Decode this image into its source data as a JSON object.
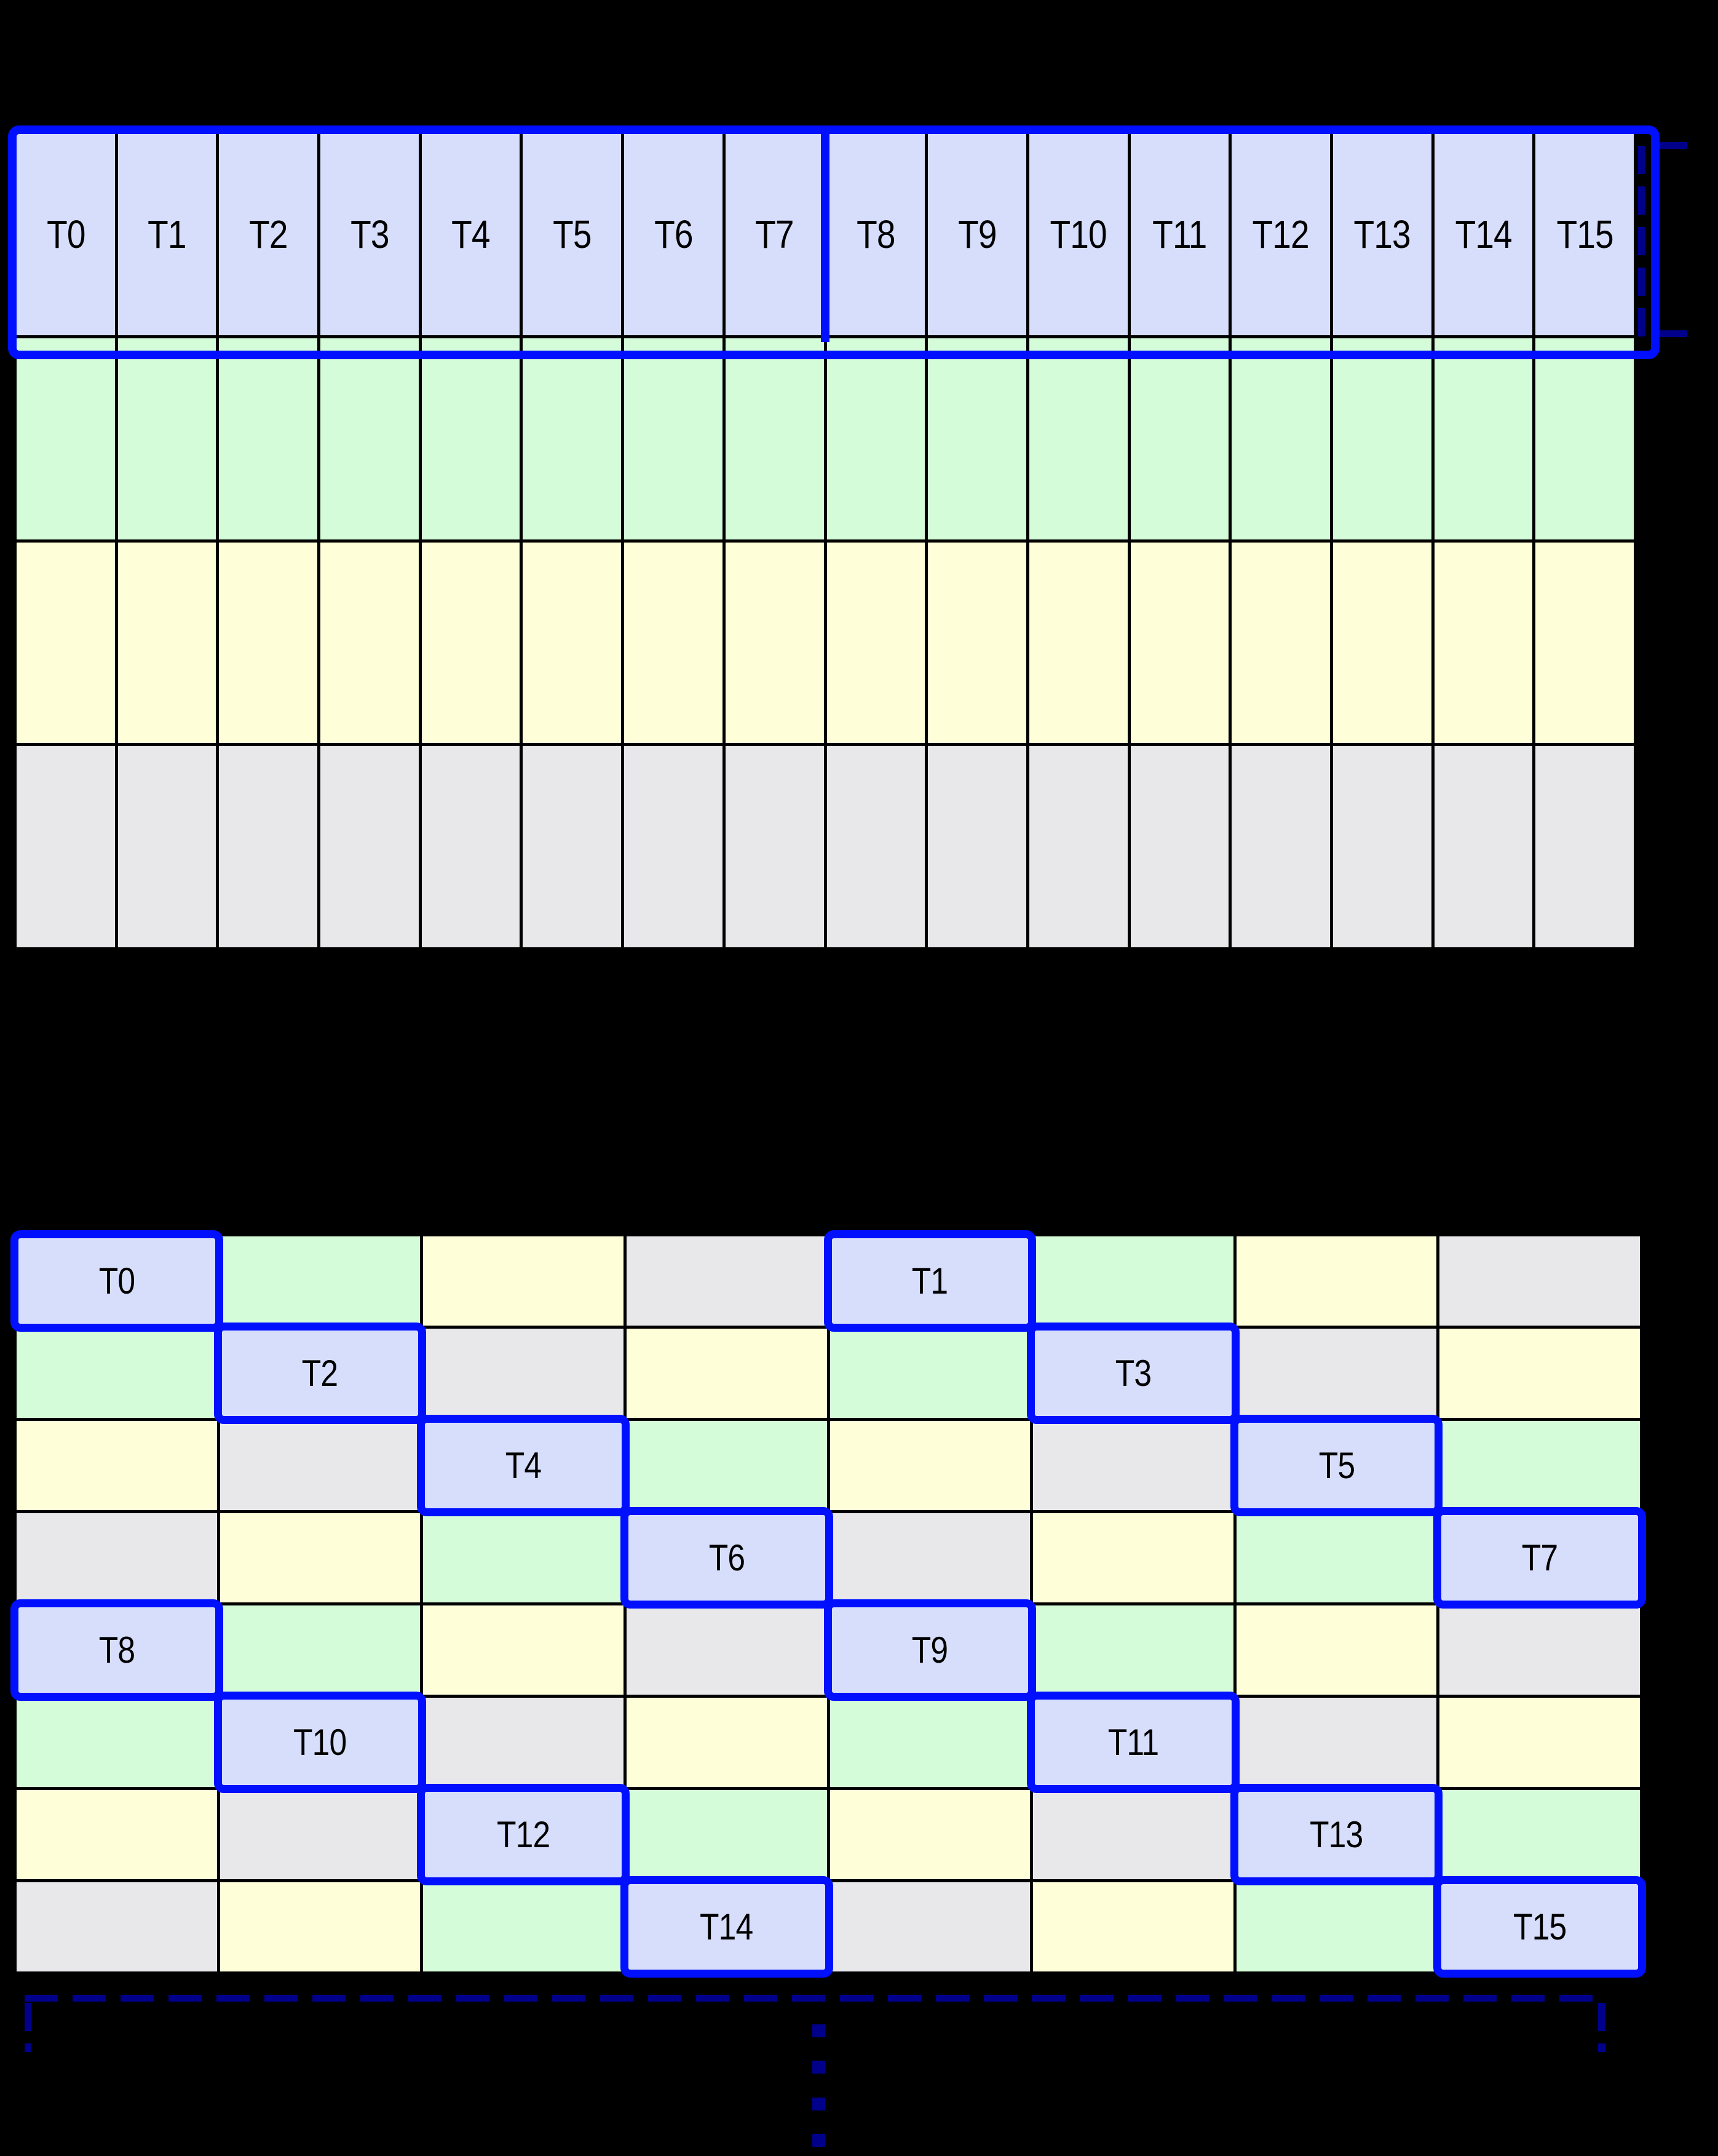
{
  "palette": {
    "thread": "#d7defb",
    "green": "#d4fcd8",
    "yellow": "#feffd8",
    "gray": "#e8e7ea",
    "highlight": "#0010ff",
    "bracket": "#00008b",
    "gridline": "#000000",
    "background": "#000000",
    "label_text": "#000000"
  },
  "grid1": {
    "columns": 16,
    "rows": 4,
    "thread_labels": [
      "T0",
      "T1",
      "T2",
      "T3",
      "T4",
      "T5",
      "T6",
      "T7",
      "T8",
      "T9",
      "T10",
      "T11",
      "T12",
      "T13",
      "T14",
      "T15"
    ],
    "row_colors": [
      "thread",
      "green",
      "yellow",
      "gray"
    ],
    "thread_groups": [
      {
        "start": 0,
        "end": 7
      },
      {
        "start": 8,
        "end": 15
      }
    ]
  },
  "grid2": {
    "columns": 8,
    "rows": 8,
    "code_map": {
      "B": "thread",
      "G": "green",
      "Y": "yellow",
      "E": "gray"
    },
    "pattern": [
      [
        "B",
        "G",
        "Y",
        "E",
        "B",
        "G",
        "Y",
        "E"
      ],
      [
        "G",
        "B",
        "E",
        "Y",
        "G",
        "B",
        "E",
        "Y"
      ],
      [
        "Y",
        "E",
        "B",
        "G",
        "Y",
        "E",
        "B",
        "G"
      ],
      [
        "E",
        "Y",
        "G",
        "B",
        "E",
        "Y",
        "G",
        "B"
      ],
      [
        "B",
        "G",
        "Y",
        "E",
        "B",
        "G",
        "Y",
        "E"
      ],
      [
        "G",
        "B",
        "E",
        "Y",
        "G",
        "B",
        "E",
        "Y"
      ],
      [
        "Y",
        "E",
        "B",
        "G",
        "Y",
        "E",
        "B",
        "G"
      ],
      [
        "E",
        "Y",
        "G",
        "B",
        "E",
        "Y",
        "G",
        "B"
      ]
    ],
    "labels": [
      {
        "r": 0,
        "c": 0,
        "t": "T0"
      },
      {
        "r": 0,
        "c": 4,
        "t": "T1"
      },
      {
        "r": 1,
        "c": 1,
        "t": "T2"
      },
      {
        "r": 1,
        "c": 5,
        "t": "T3"
      },
      {
        "r": 2,
        "c": 2,
        "t": "T4"
      },
      {
        "r": 2,
        "c": 6,
        "t": "T5"
      },
      {
        "r": 3,
        "c": 3,
        "t": "T6"
      },
      {
        "r": 3,
        "c": 7,
        "t": "T7"
      },
      {
        "r": 4,
        "c": 0,
        "t": "T8"
      },
      {
        "r": 4,
        "c": 4,
        "t": "T9"
      },
      {
        "r": 5,
        "c": 1,
        "t": "T10"
      },
      {
        "r": 5,
        "c": 5,
        "t": "T11"
      },
      {
        "r": 6,
        "c": 2,
        "t": "T12"
      },
      {
        "r": 6,
        "c": 6,
        "t": "T13"
      },
      {
        "r": 7,
        "c": 3,
        "t": "T14"
      },
      {
        "r": 7,
        "c": 7,
        "t": "T15"
      }
    ]
  },
  "annotations": {
    "continuation_dots": 4
  }
}
